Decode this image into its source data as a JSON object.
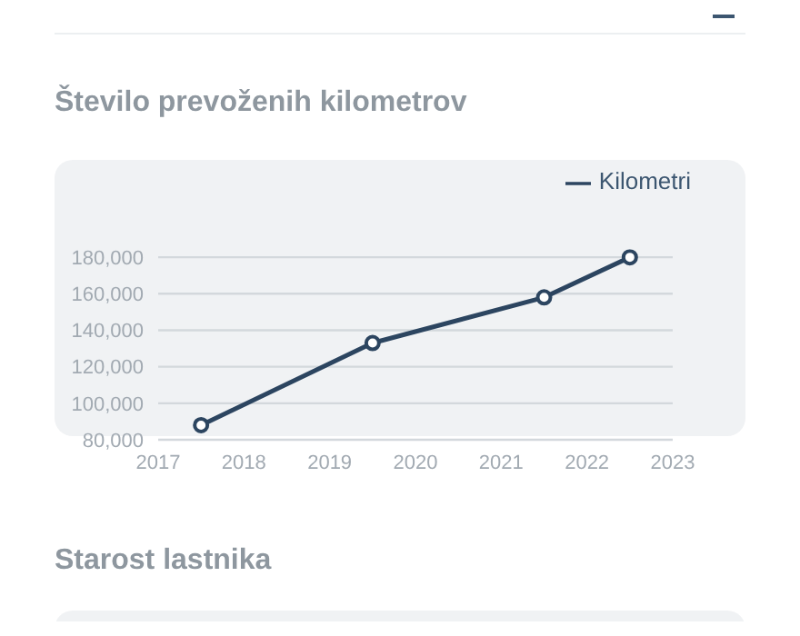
{
  "chart_data": {
    "type": "line",
    "title": "Število prevoženih kilometrov",
    "x": [
      2017.5,
      2019.5,
      2021.5,
      2022.5
    ],
    "series": [
      {
        "name": "Kilometri",
        "color": "#2c4560",
        "values": [
          88000,
          133000,
          158000,
          180000
        ]
      }
    ],
    "xlim": [
      2017,
      2023
    ],
    "xticks": [
      2017,
      2018,
      2019,
      2020,
      2021,
      2022,
      2023
    ],
    "ylim": [
      80000,
      180000
    ],
    "yticks": [
      {
        "value": 80000,
        "label": "80,000"
      },
      {
        "value": 100000,
        "label": "100,000"
      },
      {
        "value": 120000,
        "label": "120,000"
      },
      {
        "value": 140000,
        "label": "140,000"
      },
      {
        "value": 160000,
        "label": "160,000"
      },
      {
        "value": 180000,
        "label": "180,000"
      }
    ],
    "grid": "y",
    "legend": "top right",
    "marker": "circle",
    "line_style": "solid",
    "annotations": [
      "Starost lastnika"
    ]
  }
}
